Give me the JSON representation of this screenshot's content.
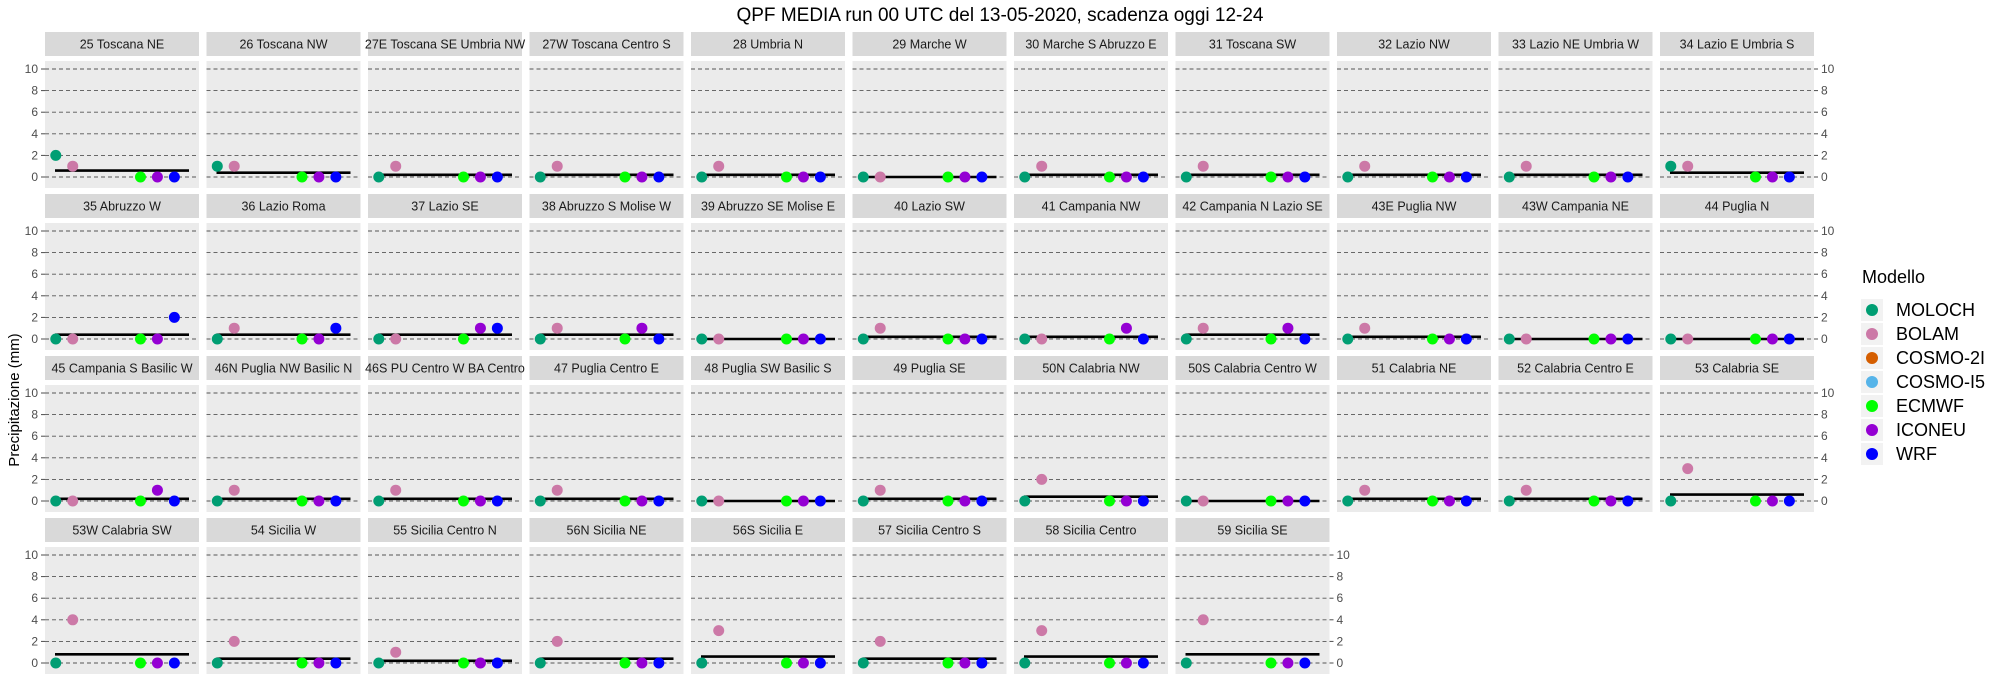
{
  "chart_data": {
    "type": "scatter",
    "title": "QPF MEDIA run 00 UTC del 13-05-2020, scadenza oggi 12-24",
    "ylabel": "Precipitazione  (mm)",
    "ylim": [
      0,
      10
    ],
    "yticks": [
      0,
      2,
      4,
      6,
      8,
      10
    ],
    "grid": "dashed horizontal",
    "legend": {
      "title": "Modello",
      "placement": "right",
      "entries": [
        {
          "name": "MOLOCH",
          "color": "#009E73"
        },
        {
          "name": "BOLAM",
          "color": "#CC79A7"
        },
        {
          "name": "COSMO-2I",
          "color": "#D55E00"
        },
        {
          "name": "COSMO-I5",
          "color": "#56B4E9"
        },
        {
          "name": "ECMWF",
          "color": "#00FF00"
        },
        {
          "name": "ICONEU",
          "color": "#9400D3"
        },
        {
          "name": "WRF",
          "color": "#0000FF"
        }
      ]
    },
    "models_x_order": [
      "MOLOCH",
      "BOLAM",
      "ECMWF",
      "ICONEU",
      "WRF"
    ],
    "panels": [
      {
        "label": "25 Toscana NE",
        "values": {
          "MOLOCH": 2,
          "BOLAM": 1,
          "ECMWF": 0,
          "ICONEU": 0,
          "WRF": 0
        },
        "mean": 0.6
      },
      {
        "label": "26 Toscana NW",
        "values": {
          "MOLOCH": 1,
          "BOLAM": 1,
          "ECMWF": 0,
          "ICONEU": 0,
          "WRF": 0
        },
        "mean": 0.4
      },
      {
        "label": "27E Toscana SE Umbria NW",
        "values": {
          "MOLOCH": 0,
          "BOLAM": 1,
          "ECMWF": 0,
          "ICONEU": 0,
          "WRF": 0
        },
        "mean": 0.2
      },
      {
        "label": "27W Toscana Centro S",
        "values": {
          "MOLOCH": 0,
          "BOLAM": 1,
          "ECMWF": 0,
          "ICONEU": 0,
          "WRF": 0
        },
        "mean": 0.2
      },
      {
        "label": "28 Umbria N",
        "values": {
          "MOLOCH": 0,
          "BOLAM": 1,
          "ECMWF": 0,
          "ICONEU": 0,
          "WRF": 0
        },
        "mean": 0.2
      },
      {
        "label": "29 Marche W",
        "values": {
          "MOLOCH": 0,
          "BOLAM": 0,
          "ECMWF": 0,
          "ICONEU": 0,
          "WRF": 0
        },
        "mean": 0
      },
      {
        "label": "30 Marche S Abruzzo E",
        "values": {
          "MOLOCH": 0,
          "BOLAM": 1,
          "ECMWF": 0,
          "ICONEU": 0,
          "WRF": 0
        },
        "mean": 0.2
      },
      {
        "label": "31 Toscana SW",
        "values": {
          "MOLOCH": 0,
          "BOLAM": 1,
          "ECMWF": 0,
          "ICONEU": 0,
          "WRF": 0
        },
        "mean": 0.2
      },
      {
        "label": "32 Lazio NW",
        "values": {
          "MOLOCH": 0,
          "BOLAM": 1,
          "ECMWF": 0,
          "ICONEU": 0,
          "WRF": 0
        },
        "mean": 0.2
      },
      {
        "label": "33 Lazio NE Umbria W",
        "values": {
          "MOLOCH": 0,
          "BOLAM": 1,
          "ECMWF": 0,
          "ICONEU": 0,
          "WRF": 0
        },
        "mean": 0.2
      },
      {
        "label": "34 Lazio E Umbria S",
        "values": {
          "MOLOCH": 1,
          "BOLAM": 1,
          "ECMWF": 0,
          "ICONEU": 0,
          "WRF": 0
        },
        "mean": 0.4
      },
      {
        "label": "35 Abruzzo W",
        "values": {
          "MOLOCH": 0,
          "BOLAM": 0,
          "ECMWF": 0,
          "ICONEU": 0,
          "WRF": 2
        },
        "mean": 0.4
      },
      {
        "label": "36 Lazio Roma",
        "values": {
          "MOLOCH": 0,
          "BOLAM": 1,
          "ECMWF": 0,
          "ICONEU": 0,
          "WRF": 1
        },
        "mean": 0.4
      },
      {
        "label": "37 Lazio SE",
        "values": {
          "MOLOCH": 0,
          "BOLAM": 0,
          "ECMWF": 0,
          "ICONEU": 1,
          "WRF": 1
        },
        "mean": 0.4
      },
      {
        "label": "38 Abruzzo S Molise W",
        "values": {
          "MOLOCH": 0,
          "BOLAM": 1,
          "ECMWF": 0,
          "ICONEU": 1,
          "WRF": 0
        },
        "mean": 0.4
      },
      {
        "label": "39 Abruzzo SE Molise E",
        "values": {
          "MOLOCH": 0,
          "BOLAM": 0,
          "ECMWF": 0,
          "ICONEU": 0,
          "WRF": 0
        },
        "mean": 0
      },
      {
        "label": "40 Lazio SW",
        "values": {
          "MOLOCH": 0,
          "BOLAM": 1,
          "ECMWF": 0,
          "ICONEU": 0,
          "WRF": 0
        },
        "mean": 0.2
      },
      {
        "label": "41 Campania NW",
        "values": {
          "MOLOCH": 0,
          "BOLAM": 0,
          "ECMWF": 0,
          "ICONEU": 1,
          "WRF": 0
        },
        "mean": 0.2
      },
      {
        "label": "42 Campania N Lazio SE",
        "values": {
          "MOLOCH": 0,
          "BOLAM": 1,
          "ECMWF": 0,
          "ICONEU": 1,
          "WRF": 0
        },
        "mean": 0.4
      },
      {
        "label": "43E Puglia NW",
        "values": {
          "MOLOCH": 0,
          "BOLAM": 1,
          "ECMWF": 0,
          "ICONEU": 0,
          "WRF": 0
        },
        "mean": 0.2
      },
      {
        "label": "43W Campania NE",
        "values": {
          "MOLOCH": 0,
          "BOLAM": 0,
          "ECMWF": 0,
          "ICONEU": 0,
          "WRF": 0
        },
        "mean": 0
      },
      {
        "label": "44 Puglia N",
        "values": {
          "MOLOCH": 0,
          "BOLAM": 0,
          "ECMWF": 0,
          "ICONEU": 0,
          "WRF": 0
        },
        "mean": 0
      },
      {
        "label": "45 Campania S Basilic W",
        "values": {
          "MOLOCH": 0,
          "BOLAM": 0,
          "ECMWF": 0,
          "ICONEU": 1,
          "WRF": 0
        },
        "mean": 0.2
      },
      {
        "label": "46N Puglia NW Basilic N",
        "values": {
          "MOLOCH": 0,
          "BOLAM": 1,
          "ECMWF": 0,
          "ICONEU": 0,
          "WRF": 0
        },
        "mean": 0.2
      },
      {
        "label": "46S PU Centro W BA Centro",
        "values": {
          "MOLOCH": 0,
          "BOLAM": 1,
          "ECMWF": 0,
          "ICONEU": 0,
          "WRF": 0
        },
        "mean": 0.2
      },
      {
        "label": "47 Puglia Centro E",
        "values": {
          "MOLOCH": 0,
          "BOLAM": 1,
          "ECMWF": 0,
          "ICONEU": 0,
          "WRF": 0
        },
        "mean": 0.2
      },
      {
        "label": "48 Puglia SW Basilic S",
        "values": {
          "MOLOCH": 0,
          "BOLAM": 0,
          "ECMWF": 0,
          "ICONEU": 0,
          "WRF": 0
        },
        "mean": 0
      },
      {
        "label": "49 Puglia SE",
        "values": {
          "MOLOCH": 0,
          "BOLAM": 1,
          "ECMWF": 0,
          "ICONEU": 0,
          "WRF": 0
        },
        "mean": 0.2
      },
      {
        "label": "50N Calabria NW",
        "values": {
          "MOLOCH": 0,
          "BOLAM": 2,
          "ECMWF": 0,
          "ICONEU": 0,
          "WRF": 0
        },
        "mean": 0.4
      },
      {
        "label": "50S Calabria Centro W",
        "values": {
          "MOLOCH": 0,
          "BOLAM": 0,
          "ECMWF": 0,
          "ICONEU": 0,
          "WRF": 0
        },
        "mean": 0
      },
      {
        "label": "51 Calabria NE",
        "values": {
          "MOLOCH": 0,
          "BOLAM": 1,
          "ECMWF": 0,
          "ICONEU": 0,
          "WRF": 0
        },
        "mean": 0.2
      },
      {
        "label": "52 Calabria Centro E",
        "values": {
          "MOLOCH": 0,
          "BOLAM": 1,
          "ECMWF": 0,
          "ICONEU": 0,
          "WRF": 0
        },
        "mean": 0.2
      },
      {
        "label": "53 Calabria SE",
        "values": {
          "MOLOCH": 0,
          "BOLAM": 3,
          "ECMWF": 0,
          "ICONEU": 0,
          "WRF": 0
        },
        "mean": 0.6
      },
      {
        "label": "53W Calabria SW",
        "values": {
          "MOLOCH": 0,
          "BOLAM": 4,
          "ECMWF": 0,
          "ICONEU": 0,
          "WRF": 0
        },
        "mean": 0.8
      },
      {
        "label": "54 Sicilia W",
        "values": {
          "MOLOCH": 0,
          "BOLAM": 2,
          "ECMWF": 0,
          "ICONEU": 0,
          "WRF": 0
        },
        "mean": 0.4
      },
      {
        "label": "55 Sicilia Centro N",
        "values": {
          "MOLOCH": 0,
          "BOLAM": 1,
          "ECMWF": 0,
          "ICONEU": 0,
          "WRF": 0
        },
        "mean": 0.2
      },
      {
        "label": "56N Sicilia NE",
        "values": {
          "MOLOCH": 0,
          "BOLAM": 2,
          "ECMWF": 0,
          "ICONEU": 0,
          "WRF": 0
        },
        "mean": 0.4
      },
      {
        "label": "56S Sicilia E",
        "values": {
          "MOLOCH": 0,
          "BOLAM": 3,
          "ECMWF": 0,
          "ICONEU": 0,
          "WRF": 0
        },
        "mean": 0.6
      },
      {
        "label": "57 Sicilia Centro S",
        "values": {
          "MOLOCH": 0,
          "BOLAM": 2,
          "ECMWF": 0,
          "ICONEU": 0,
          "WRF": 0
        },
        "mean": 0.4
      },
      {
        "label": "58 Sicilia Centro",
        "values": {
          "MOLOCH": 0,
          "BOLAM": 3,
          "ECMWF": 0,
          "ICONEU": 0,
          "WRF": 0
        },
        "mean": 0.6
      },
      {
        "label": "59 Sicilia SE",
        "values": {
          "MOLOCH": 0,
          "BOLAM": 4,
          "ECMWF": 0,
          "ICONEU": 0,
          "WRF": 0
        },
        "mean": 0.8
      }
    ]
  }
}
